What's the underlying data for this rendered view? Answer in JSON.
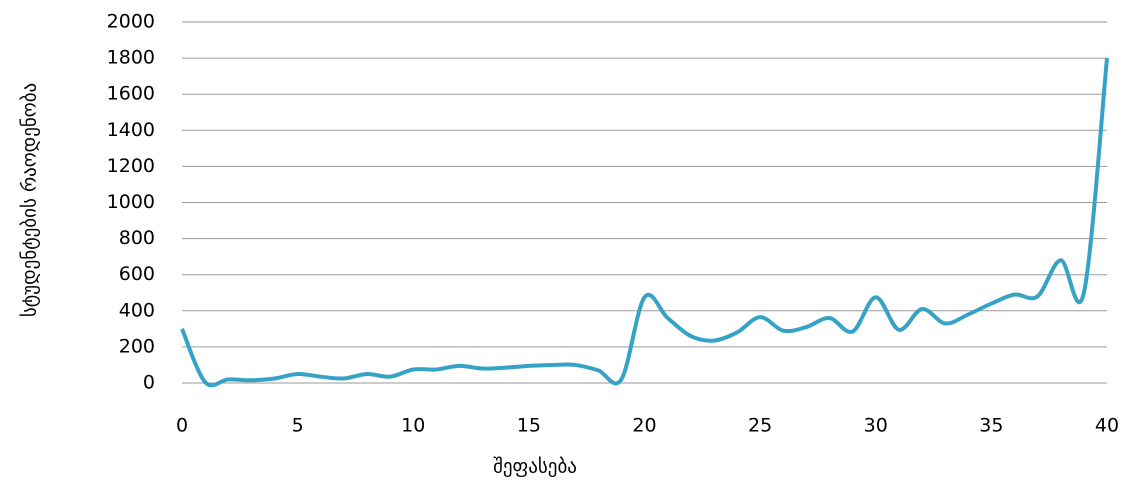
{
  "chart_data": {
    "type": "line",
    "x_label": "შეფასება",
    "y_label": "სტუდენტების რაოდენობა",
    "x": [
      0,
      1,
      2,
      3,
      4,
      5,
      6,
      7,
      8,
      9,
      10,
      11,
      12,
      13,
      14,
      15,
      16,
      17,
      18,
      19,
      20,
      21,
      22,
      23,
      24,
      25,
      26,
      27,
      28,
      29,
      30,
      31,
      32,
      33,
      34,
      35,
      36,
      37,
      38,
      39,
      40
    ],
    "series": [
      {
        "name": "სტუდენტების რაოდენობა",
        "color": "#36a3c6",
        "values": [
          300,
          5,
          20,
          15,
          25,
          50,
          35,
          25,
          50,
          35,
          75,
          75,
          95,
          80,
          85,
          95,
          100,
          100,
          70,
          20,
          475,
          360,
          260,
          235,
          280,
          365,
          290,
          310,
          360,
          285,
          475,
          295,
          410,
          330,
          380,
          440,
          490,
          480,
          680,
          500,
          1800
        ]
      }
    ],
    "xlim": [
      0,
      40
    ],
    "xticks": [
      0,
      5,
      10,
      15,
      20,
      25,
      30,
      35,
      40
    ],
    "ylim": [
      0,
      2000
    ],
    "yticks": [
      0,
      200,
      400,
      600,
      800,
      1000,
      1200,
      1400,
      1600,
      1800,
      2000
    ],
    "grid": true
  }
}
